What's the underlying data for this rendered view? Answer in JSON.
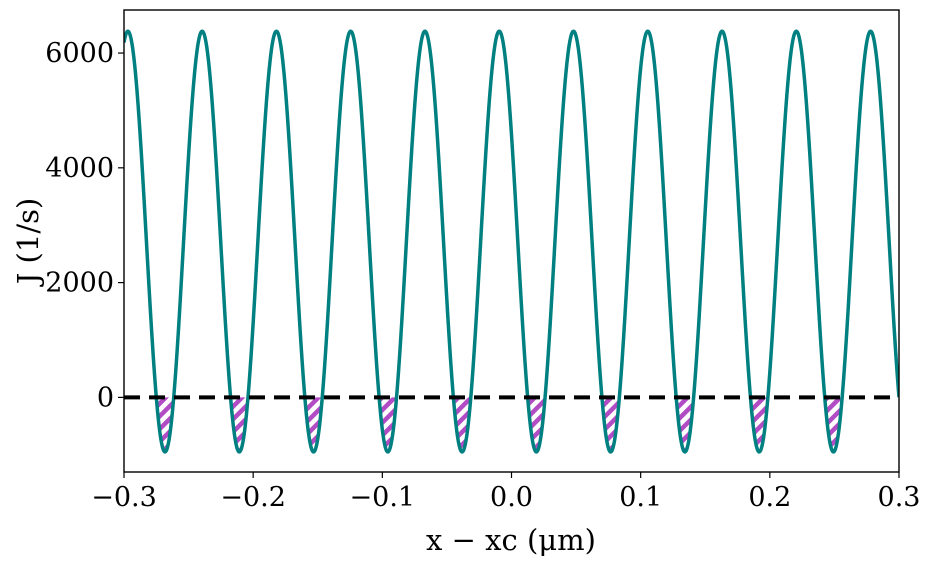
{
  "chart_data": {
    "type": "line",
    "title": "",
    "xlabel": "x − xc (μm)",
    "ylabel": "J (1/s)",
    "xlim": [
      -0.3,
      0.3
    ],
    "ylim": [
      -1300,
      6750
    ],
    "xticks": [
      -0.3,
      -0.2,
      -0.1,
      0.0,
      0.1,
      0.2,
      0.3
    ],
    "xtick_labels": [
      "−0.3",
      "−0.2",
      "−0.1",
      "0.0",
      "0.1",
      "0.2",
      "0.3"
    ],
    "yticks": [
      0,
      2000,
      4000,
      6000
    ],
    "ytick_labels": [
      "0",
      "2000",
      "4000",
      "6000"
    ],
    "grid": false,
    "series": [
      {
        "kind": "cosine",
        "color": "#008080",
        "max": 6380,
        "min": -950,
        "period_um": 0.0575,
        "first_peak_x": -0.297
      }
    ],
    "reference_line": {
      "y": 0,
      "style": "dashed",
      "color": "#000000"
    },
    "negative_region_fill": {
      "color": "#b24cc4",
      "pattern": "hatch"
    }
  }
}
